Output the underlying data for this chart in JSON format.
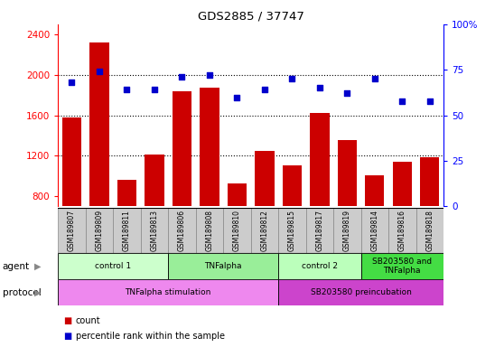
{
  "title": "GDS2885 / 37747",
  "samples": [
    "GSM189807",
    "GSM189809",
    "GSM189811",
    "GSM189813",
    "GSM189806",
    "GSM189808",
    "GSM189810",
    "GSM189812",
    "GSM189815",
    "GSM189817",
    "GSM189819",
    "GSM189814",
    "GSM189816",
    "GSM189818"
  ],
  "counts": [
    1575,
    2320,
    960,
    1210,
    1840,
    1870,
    930,
    1250,
    1110,
    1620,
    1360,
    1010,
    1140,
    1190
  ],
  "percentiles": [
    68,
    74,
    64,
    64,
    71,
    72,
    60,
    64,
    70,
    65,
    62,
    70,
    58,
    58
  ],
  "ylim_left": [
    700,
    2500
  ],
  "ylim_right": [
    0,
    100
  ],
  "yticks_left": [
    800,
    1200,
    1600,
    2000,
    2400
  ],
  "yticks_right": [
    0,
    25,
    50,
    75,
    100
  ],
  "bar_color": "#CC0000",
  "dot_color": "#0000CC",
  "agent_groups": [
    {
      "label": "control 1",
      "start": 0,
      "end": 4,
      "color": "#CCFFCC"
    },
    {
      "label": "TNFalpha",
      "start": 4,
      "end": 8,
      "color": "#99EE99"
    },
    {
      "label": "control 2",
      "start": 8,
      "end": 11,
      "color": "#BBFFBB"
    },
    {
      "label": "SB203580 and\nTNFalpha",
      "start": 11,
      "end": 14,
      "color": "#44DD44"
    }
  ],
  "protocol_groups": [
    {
      "label": "TNFalpha stimulation",
      "start": 0,
      "end": 8,
      "color": "#EE88EE"
    },
    {
      "label": "SB203580 preincubation",
      "start": 8,
      "end": 14,
      "color": "#CC44CC"
    }
  ],
  "agent_label": "agent",
  "protocol_label": "protocol",
  "legend_count": "count",
  "legend_percentile": "percentile rank within the sample",
  "dotted_gridlines": [
    1200,
    1600,
    2000
  ],
  "background_color": "#FFFFFF",
  "sample_bg_color": "#CCCCCC"
}
